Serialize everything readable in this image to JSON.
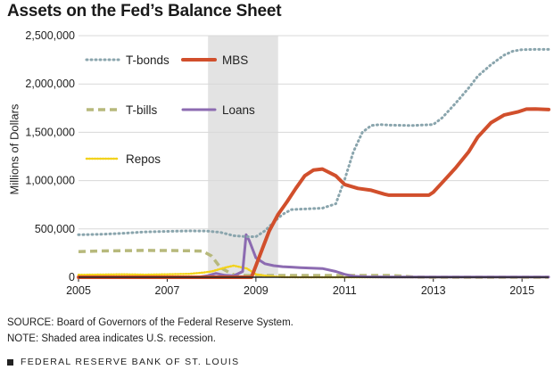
{
  "title": "Assets on the Fed’s Balance Sheet",
  "source": "SOURCE: Board of Governors of the Federal Reserve System.",
  "note": "NOTE: Shaded area indicates U.S. recession.",
  "footer": "FEDERAL RESERVE BANK OF ST. LOUIS",
  "chart_data": {
    "type": "line",
    "title": "Assets on the Fed’s Balance Sheet",
    "xlabel": "",
    "ylabel": "Millions of Dollars",
    "xlim": [
      2005,
      2015.6
    ],
    "ylim": [
      0,
      2500000
    ],
    "x_ticks": [
      2005,
      2007,
      2009,
      2011,
      2013,
      2015
    ],
    "x_tick_labels": [
      "2005",
      "2007",
      "2009",
      "2011",
      "2013",
      "2015"
    ],
    "y_ticks": [
      0,
      500000,
      1000000,
      1500000,
      2000000,
      2500000
    ],
    "y_tick_labels": [
      "0",
      "500,000",
      "1,000,000",
      "1,500,000",
      "2,000,000",
      "2,500,000"
    ],
    "grid": true,
    "legend_placement": "top-left",
    "recession_shading": [
      2007.92,
      2009.5
    ],
    "shade_color": "#e3e3e3",
    "series": [
      {
        "name": "T-bonds",
        "color": "#8aa5ad",
        "style": "dotted",
        "x": [
          2005,
          2005.5,
          2006,
          2006.5,
          2007,
          2007.5,
          2007.9,
          2008.2,
          2008.5,
          2008.8,
          2009.0,
          2009.2,
          2009.4,
          2009.6,
          2009.8,
          2010.0,
          2010.5,
          2010.8,
          2011.0,
          2011.2,
          2011.4,
          2011.6,
          2011.8,
          2012.0,
          2012.5,
          2013.0,
          2013.2,
          2013.5,
          2013.8,
          2014.0,
          2014.3,
          2014.6,
          2014.8,
          2015.0,
          2015.3,
          2015.6
        ],
        "y": [
          440000,
          445000,
          455000,
          470000,
          475000,
          480000,
          478000,
          465000,
          430000,
          420000,
          420000,
          480000,
          570000,
          650000,
          700000,
          705000,
          715000,
          760000,
          1010000,
          1300000,
          1500000,
          1570000,
          1580000,
          1575000,
          1570000,
          1580000,
          1650000,
          1800000,
          1960000,
          2080000,
          2200000,
          2300000,
          2340000,
          2355000,
          2358000,
          2358000
        ]
      },
      {
        "name": "MBS",
        "color": "#d14f2c",
        "style": "solid",
        "x": [
          2005,
          2008.9,
          2009.0,
          2009.15,
          2009.3,
          2009.5,
          2009.7,
          2009.9,
          2010.1,
          2010.3,
          2010.5,
          2010.8,
          2011.0,
          2011.3,
          2011.6,
          2011.9,
          2012.0,
          2012.3,
          2012.6,
          2012.9,
          2013.0,
          2013.2,
          2013.5,
          2013.8,
          2014.0,
          2014.3,
          2014.6,
          2014.9,
          2015.1,
          2015.3,
          2015.6
        ],
        "y": [
          0,
          0,
          120000,
          300000,
          480000,
          650000,
          780000,
          920000,
          1050000,
          1110000,
          1120000,
          1050000,
          960000,
          920000,
          900000,
          860000,
          850000,
          850000,
          850000,
          850000,
          880000,
          980000,
          1130000,
          1300000,
          1450000,
          1600000,
          1680000,
          1710000,
          1740000,
          1742000,
          1735000
        ]
      },
      {
        "name": "T-bills",
        "color": "#b7b97c",
        "style": "dashed",
        "x": [
          2005,
          2005.5,
          2006,
          2006.5,
          2007,
          2007.5,
          2007.8,
          2008.0,
          2008.2,
          2008.5,
          2008.8,
          2009.0,
          2009.3,
          2009.6,
          2010.0,
          2011.0,
          2012.0,
          2012.3,
          2012.6,
          2013.0,
          2014.0,
          2015.6
        ],
        "y": [
          265000,
          272000,
          275000,
          278000,
          277000,
          274000,
          270000,
          220000,
          100000,
          25000,
          18000,
          18000,
          18000,
          18000,
          18000,
          18000,
          18000,
          12000,
          2000,
          0,
          0,
          0
        ]
      },
      {
        "name": "Loans",
        "color": "#8c6bb1",
        "style": "solid",
        "x": [
          2005,
          2007.7,
          2007.9,
          2008.1,
          2008.3,
          2008.5,
          2008.7,
          2008.78,
          2008.85,
          2009.0,
          2009.2,
          2009.4,
          2009.6,
          2009.8,
          2010.0,
          2010.5,
          2010.8,
          2011.0,
          2011.2,
          2011.5,
          2012.0,
          2013.0,
          2015.6
        ],
        "y": [
          2000,
          2000,
          15000,
          40000,
          20000,
          15000,
          60000,
          440000,
          380000,
          200000,
          140000,
          120000,
          110000,
          105000,
          100000,
          90000,
          60000,
          30000,
          10000,
          5000,
          3000,
          2000,
          2000
        ]
      },
      {
        "name": "Repos",
        "color": "#f2d21b",
        "style": "dotted",
        "x": [
          2005,
          2005.5,
          2006,
          2006.5,
          2007,
          2007.5,
          2007.8,
          2008.0,
          2008.3,
          2008.5,
          2008.8,
          2009.0,
          2009.3,
          2009.6,
          2010.0,
          2015.6
        ],
        "y": [
          25000,
          28000,
          30000,
          27000,
          30000,
          35000,
          48000,
          60000,
          100000,
          120000,
          90000,
          30000,
          10000,
          2000,
          0,
          0
        ]
      }
    ]
  }
}
